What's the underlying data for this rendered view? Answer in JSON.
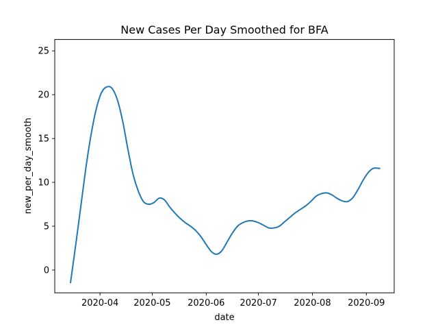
{
  "chart_data": {
    "type": "line",
    "title": "New Cases Per Day Smoothed for BFA",
    "xlabel": "date",
    "ylabel": "new_per_day_smooth",
    "xlim": [
      "2020-03-06",
      "2020-09-17"
    ],
    "ylim": [
      -2.6,
      26.3
    ],
    "x_ticks": [
      "2020-04",
      "2020-05",
      "2020-06",
      "2020-07",
      "2020-08",
      "2020-09"
    ],
    "y_ticks": [
      0,
      5,
      10,
      15,
      20,
      25
    ],
    "grid": false,
    "series": [
      {
        "color": "#1f77b4",
        "x": [
          "2020-03-15",
          "2020-03-18",
          "2020-03-21",
          "2020-03-24",
          "2020-03-27",
          "2020-03-30",
          "2020-04-02",
          "2020-04-05",
          "2020-04-08",
          "2020-04-11",
          "2020-04-14",
          "2020-04-17",
          "2020-04-20",
          "2020-04-23",
          "2020-04-26",
          "2020-04-29",
          "2020-05-02",
          "2020-05-05",
          "2020-05-08",
          "2020-05-11",
          "2020-05-14",
          "2020-05-17",
          "2020-05-20",
          "2020-05-23",
          "2020-05-26",
          "2020-05-29",
          "2020-06-01",
          "2020-06-04",
          "2020-06-07",
          "2020-06-10",
          "2020-06-13",
          "2020-06-16",
          "2020-06-19",
          "2020-06-22",
          "2020-06-25",
          "2020-06-28",
          "2020-07-01",
          "2020-07-04",
          "2020-07-07",
          "2020-07-10",
          "2020-07-13",
          "2020-07-16",
          "2020-07-19",
          "2020-07-22",
          "2020-07-25",
          "2020-07-28",
          "2020-07-31",
          "2020-08-03",
          "2020-08-06",
          "2020-08-09",
          "2020-08-12",
          "2020-08-15",
          "2020-08-18",
          "2020-08-21",
          "2020-08-24",
          "2020-08-27",
          "2020-08-30",
          "2020-09-02",
          "2020-09-05",
          "2020-09-08",
          "2020-09-09"
        ],
        "y": [
          -1.5,
          2.8,
          7.3,
          11.8,
          15.6,
          18.5,
          20.3,
          20.9,
          20.7,
          19.4,
          17.0,
          13.8,
          10.9,
          9.0,
          7.8,
          7.5,
          7.7,
          8.2,
          8.0,
          7.2,
          6.5,
          5.9,
          5.4,
          5.0,
          4.5,
          3.8,
          2.9,
          2.1,
          1.8,
          2.2,
          3.2,
          4.2,
          5.0,
          5.4,
          5.6,
          5.6,
          5.4,
          5.1,
          4.8,
          4.8,
          5.0,
          5.5,
          6.0,
          6.5,
          6.9,
          7.3,
          7.8,
          8.4,
          8.7,
          8.8,
          8.6,
          8.2,
          7.9,
          7.8,
          8.2,
          9.1,
          10.2,
          11.1,
          11.6,
          11.6,
          11.6
        ]
      }
    ]
  }
}
